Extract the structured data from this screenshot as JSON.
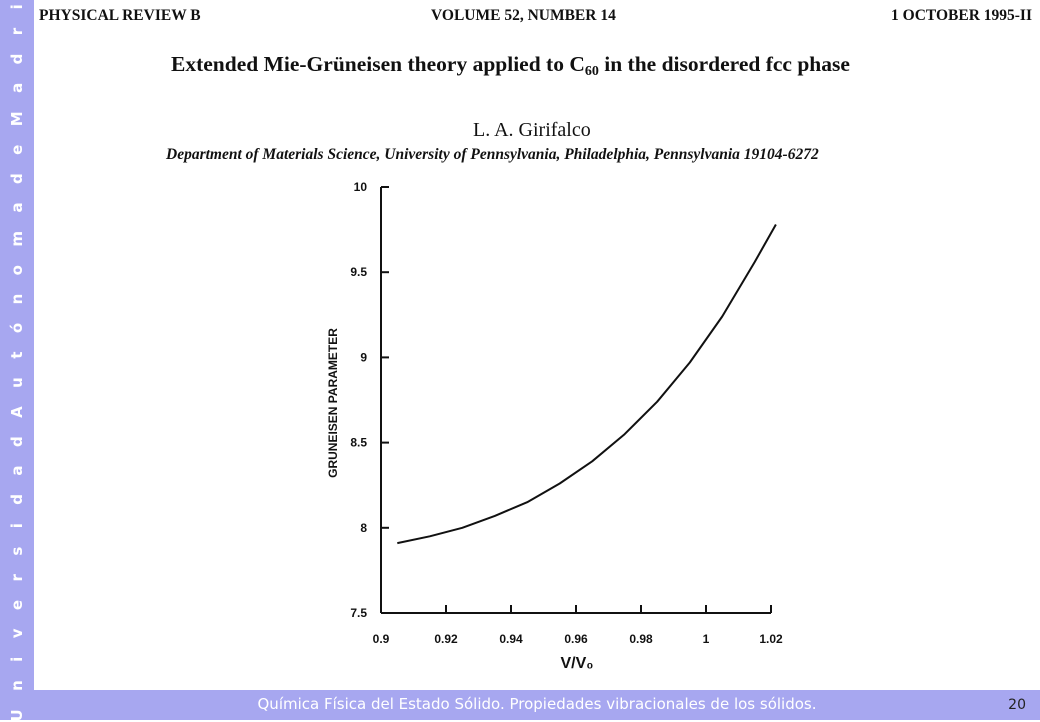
{
  "sidebar": {
    "text": "U n i v e r s i d a d   A u t ó n o m a   d e   M a d r i d"
  },
  "header": {
    "journal": "PHYSICAL REVIEW B",
    "volume": "VOLUME 52, NUMBER 14",
    "date": "1 OCTOBER 1995-II"
  },
  "paper": {
    "title_pre": "Extended Mie-Grüneisen theory applied to C",
    "title_sub": "60",
    "title_post": " in the disordered fcc phase",
    "author": "L. A. Girifalco",
    "affiliation": "Department of Materials Science, University of Pennsylvania, Philadelphia, Pennsylvania 19104-6272"
  },
  "footer": {
    "text": "Química Física del Estado Sólido. Propiedades vibracionales de los sólidos.",
    "page": "20"
  },
  "chart_data": {
    "type": "line",
    "title": "",
    "xlabel": "V/V₀",
    "ylabel": "GRUNEISEN PARAMETER",
    "xlim": [
      0.9,
      1.02
    ],
    "ylim": [
      7.5,
      10
    ],
    "xticks": [
      "0.9",
      "0.92",
      "0.94",
      "0.96",
      "0.98",
      "1",
      "1.02"
    ],
    "yticks": [
      "7.5",
      "8",
      "8.5",
      "9",
      "9.5",
      "10"
    ],
    "grid": false,
    "series": [
      {
        "x": [
          0.905,
          0.915,
          0.925,
          0.935,
          0.945,
          0.955,
          0.965,
          0.975,
          0.985,
          0.995,
          1.005,
          1.015,
          1.0215
        ],
        "values": [
          7.91,
          7.95,
          8.0,
          8.07,
          8.15,
          8.26,
          8.39,
          8.55,
          8.74,
          8.97,
          9.24,
          9.56,
          9.78
        ]
      }
    ]
  }
}
